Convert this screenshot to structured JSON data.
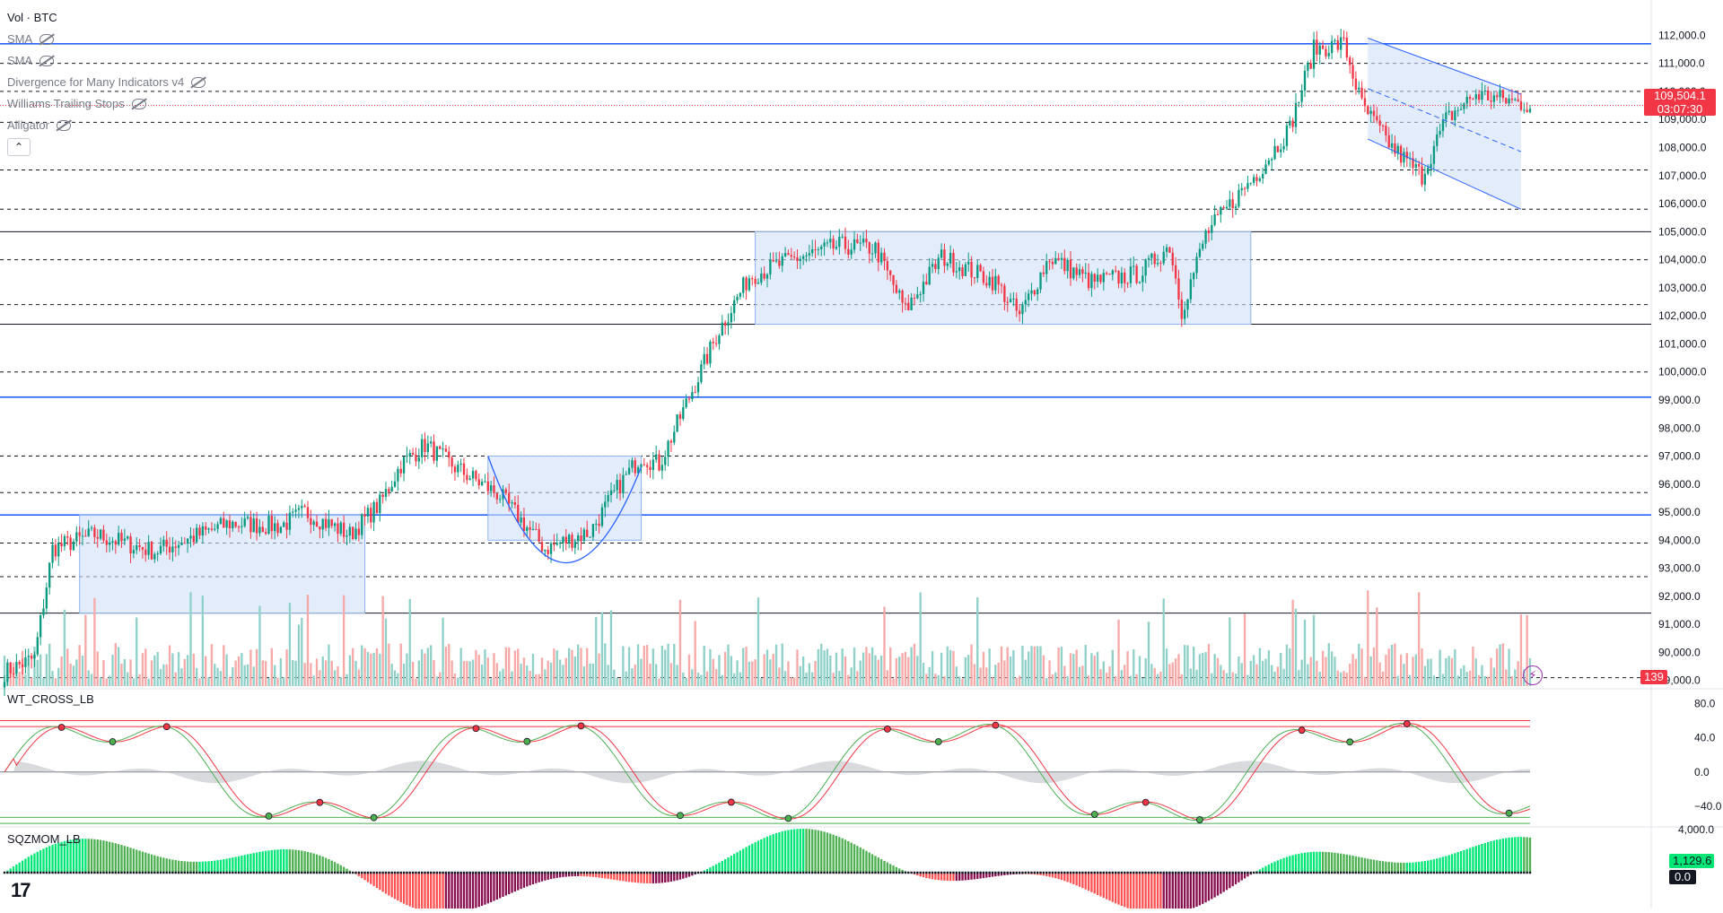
{
  "legend": {
    "title": "Vol · BTC",
    "indicators": [
      {
        "label": "SMA",
        "hidden": true
      },
      {
        "label": "SMA",
        "hidden": true
      },
      {
        "label": "Divergence for Many Indicators v4",
        "hidden": true
      },
      {
        "label": "Williams Trailing Stops",
        "hidden": true
      },
      {
        "label": "Alligator",
        "hidden": true
      }
    ],
    "collapse_icon": "chevron-up-icon"
  },
  "price_axis": {
    "ticks": [
      "112,000.0",
      "111,000.0",
      "110,000.0",
      "109,000.0",
      "108,000.0",
      "107,000.0",
      "106,000.0",
      "105,000.0",
      "104,000.0",
      "103,000.0",
      "102,000.0",
      "101,000.0",
      "100,000.0",
      "99,000.0",
      "98,000.0",
      "97,000.0",
      "96,000.0",
      "95,000.0",
      "94,000.0",
      "93,000.0",
      "92,000.0",
      "91,000.0",
      "90,000.0",
      "89,000.0"
    ],
    "current_price": "109,504.1",
    "countdown": "03:07:30",
    "volume_value": "139"
  },
  "wt_pane": {
    "label": "WT_CROSS_LB",
    "ticks": [
      "80.0",
      "40.0",
      "0.0",
      "−40.0"
    ]
  },
  "sqz_pane": {
    "label": "SQZMOM_LB",
    "ticks": [
      "4,000.0"
    ],
    "value": "1,129.6",
    "zero_value": "0.0"
  },
  "logo": "17",
  "colors": {
    "up": "#089981",
    "down": "#f23645",
    "up_vol": "#8fd1c8",
    "down_vol": "#f7a9a7",
    "range_fill": "#cfe0f8",
    "range_stroke": "#2962ff",
    "blue_line": "#2962ff",
    "wt_green": "#4caf50",
    "wt_red": "#f23645",
    "sqz_lime": "#00e676",
    "sqz_green": "#4caf50",
    "sqz_red": "#ff5252",
    "sqz_maroon": "#880e4f"
  },
  "chart_data": {
    "type": "candlestick",
    "symbol": "BTC",
    "ylim": [
      88800,
      112300
    ],
    "levels": {
      "blue": [
        111700,
        99100,
        94900
      ],
      "black_solid": [
        105000,
        101700,
        91400
      ],
      "dashed": [
        111000,
        110000,
        108900,
        107200,
        105800,
        104000,
        102400,
        100000,
        97000,
        95700,
        93900,
        92700,
        89100
      ]
    },
    "anchors": [
      [
        0,
        89300
      ],
      [
        10,
        89800
      ],
      [
        16,
        93700
      ],
      [
        30,
        94200
      ],
      [
        50,
        93600
      ],
      [
        75,
        94600
      ],
      [
        92,
        94500
      ],
      [
        100,
        95000
      ],
      [
        115,
        94200
      ],
      [
        125,
        95300
      ],
      [
        132,
        96700
      ],
      [
        140,
        97400
      ],
      [
        150,
        96600
      ],
      [
        165,
        95600
      ],
      [
        180,
        93700
      ],
      [
        195,
        94300
      ],
      [
        205,
        96000
      ],
      [
        212,
        97000
      ],
      [
        218,
        96700
      ],
      [
        228,
        99100
      ],
      [
        238,
        101500
      ],
      [
        248,
        103400
      ],
      [
        262,
        104000
      ],
      [
        278,
        104500
      ],
      [
        290,
        104400
      ],
      [
        300,
        102200
      ],
      [
        312,
        104100
      ],
      [
        330,
        103200
      ],
      [
        338,
        102000
      ],
      [
        348,
        104100
      ],
      [
        362,
        103200
      ],
      [
        378,
        103500
      ],
      [
        388,
        104500
      ],
      [
        392,
        102200
      ],
      [
        400,
        104900
      ],
      [
        410,
        106200
      ],
      [
        418,
        107200
      ],
      [
        428,
        108700
      ],
      [
        436,
        111500
      ],
      [
        446,
        111700
      ],
      [
        452,
        109500
      ],
      [
        462,
        108000
      ],
      [
        472,
        107000
      ],
      [
        480,
        109000
      ],
      [
        490,
        109900
      ],
      [
        500,
        109700
      ],
      [
        508,
        109500
      ]
    ]
  }
}
